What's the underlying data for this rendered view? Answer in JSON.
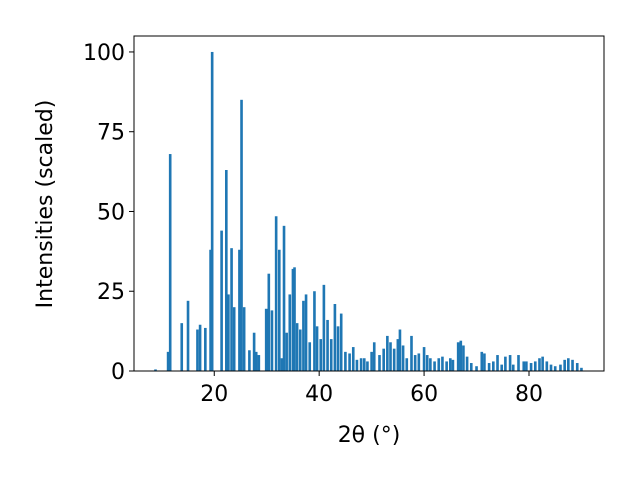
{
  "chart_data": {
    "type": "bar",
    "xlabel": "2θ (°)",
    "ylabel": "Intensities (scaled)",
    "color": "#1f77b4",
    "xlim": [
      4.7,
      94.3
    ],
    "ylim": [
      0,
      105
    ],
    "xticks": [
      20,
      40,
      60,
      80
    ],
    "yticks": [
      0,
      25,
      50,
      75,
      100
    ],
    "x": [
      8.8,
      11.2,
      11.6,
      13.8,
      15.0,
      16.8,
      17.3,
      18.3,
      19.3,
      19.6,
      21.4,
      22.3,
      22.7,
      23.3,
      23.8,
      24.8,
      25.2,
      25.7,
      26.7,
      27.6,
      28.0,
      28.5,
      29.9,
      30.4,
      31.0,
      31.8,
      32.4,
      32.9,
      33.3,
      33.8,
      34.4,
      35.0,
      35.3,
      35.8,
      36.4,
      37.0,
      37.5,
      38.2,
      39.1,
      39.6,
      40.3,
      40.9,
      41.6,
      42.3,
      43.0,
      43.6,
      44.2,
      45.0,
      45.8,
      46.5,
      47.2,
      48.0,
      48.6,
      49.2,
      50.0,
      50.5,
      51.5,
      52.3,
      53.0,
      53.6,
      54.3,
      55.0,
      55.4,
      56.0,
      56.7,
      57.6,
      58.3,
      59.0,
      60.0,
      60.6,
      61.2,
      62.0,
      62.8,
      63.5,
      64.3,
      65.0,
      65.5,
      66.5,
      67.0,
      67.5,
      68.2,
      69.0,
      70.0,
      71.0,
      71.5,
      72.4,
      73.2,
      74.0,
      74.8,
      75.5,
      76.4,
      77.0,
      78.0,
      79.0,
      79.5,
      80.4,
      81.2,
      82.0,
      82.6,
      83.4,
      84.2,
      85.0,
      86.0,
      86.8,
      87.5,
      88.3,
      89.2,
      90.0
    ],
    "values": [
      0.5,
      6,
      68,
      15,
      22,
      13,
      14.5,
      13.5,
      38,
      100,
      44,
      63,
      24,
      38.5,
      20,
      38,
      85,
      20,
      6.5,
      12,
      6,
      5,
      19.5,
      30.5,
      19,
      48.5,
      38,
      4,
      45.5,
      12,
      24,
      32,
      32.5,
      15,
      13,
      22,
      24,
      9,
      25,
      14,
      10,
      27,
      16,
      10,
      21,
      14,
      18,
      6,
      5.5,
      7.5,
      3.5,
      4,
      4,
      3,
      6,
      9,
      5,
      7,
      11,
      9,
      7,
      10,
      13,
      8,
      4,
      11,
      5,
      5.5,
      7.5,
      5,
      4,
      3,
      4,
      4.5,
      3,
      4,
      3.5,
      9,
      9.5,
      8,
      4.5,
      2.5,
      1.5,
      6,
      5.5,
      2.5,
      3,
      5,
      2,
      4.5,
      5,
      2,
      5,
      3,
      3,
      2.5,
      3,
      4,
      4.5,
      3,
      2,
      1.5,
      2,
      3.5,
      4,
      3.5,
      2.5,
      1
    ]
  }
}
